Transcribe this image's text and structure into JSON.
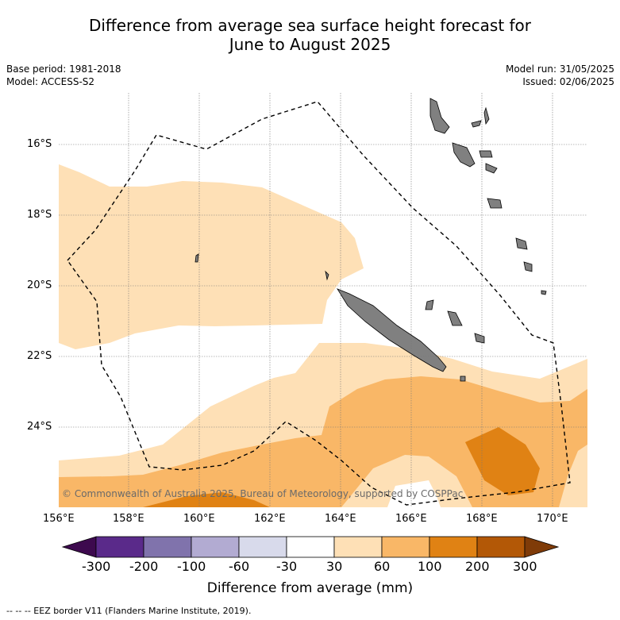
{
  "title_line1": "Difference from average sea surface height forecast for",
  "title_line2": "June to August 2025",
  "base_period": "Base period: 1981-2018",
  "model": "Model: ACCESS-S2",
  "model_run": "Model run: 31/05/2025",
  "issued": "Issued: 02/06/2025",
  "lat_labels": [
    "16°S",
    "18°S",
    "20°S",
    "22°S",
    "24°S"
  ],
  "lon_labels": [
    "156°E",
    "158°E",
    "160°E",
    "162°E",
    "164°E",
    "166°E",
    "168°E",
    "170°E"
  ],
  "copyright": "© Commonwealth of Australia 2025, Bureau of Meteorology, supported by COSPPac",
  "colorbar": {
    "label": "Difference from average (mm)",
    "ticks": [
      "-300",
      "-200",
      "-100",
      "-60",
      "-30",
      "30",
      "60",
      "100",
      "200",
      "300"
    ],
    "colors": [
      "#3d0a4e",
      "#5a2a8a",
      "#8073ac",
      "#b2abd2",
      "#d8daeb",
      "#ffffff",
      "#fee0b6",
      "#f9b767",
      "#e08214",
      "#b35806",
      "#7f3b08"
    ]
  },
  "legend_footer": "--  --  -- EEZ border V11 (Flanders Marine Institute, 2019)."
}
